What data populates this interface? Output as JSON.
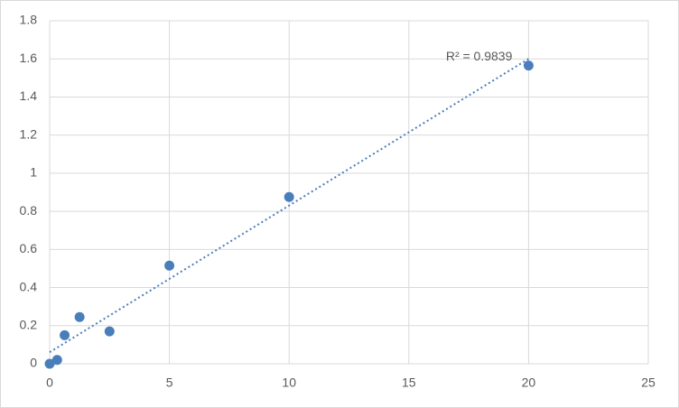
{
  "chart_data": {
    "type": "scatter",
    "x": [
      0,
      0.3125,
      0.625,
      1.25,
      2.5,
      5,
      10,
      20
    ],
    "values": [
      0,
      0.02,
      0.15,
      0.245,
      0.17,
      0.515,
      0.875,
      1.565
    ],
    "color": "#4a7ebb",
    "xlim": [
      0,
      25
    ],
    "xticks": [
      0,
      5,
      10,
      15,
      20,
      25
    ],
    "ylim": [
      0,
      1.8
    ],
    "yticks": [
      0,
      0.2,
      0.4,
      0.6,
      0.8,
      1,
      1.2,
      1.4,
      1.6,
      1.8
    ],
    "grid": true,
    "trendline": {
      "type": "linear",
      "label": "R² = 0.9839",
      "color": "#4a7ebb"
    }
  }
}
